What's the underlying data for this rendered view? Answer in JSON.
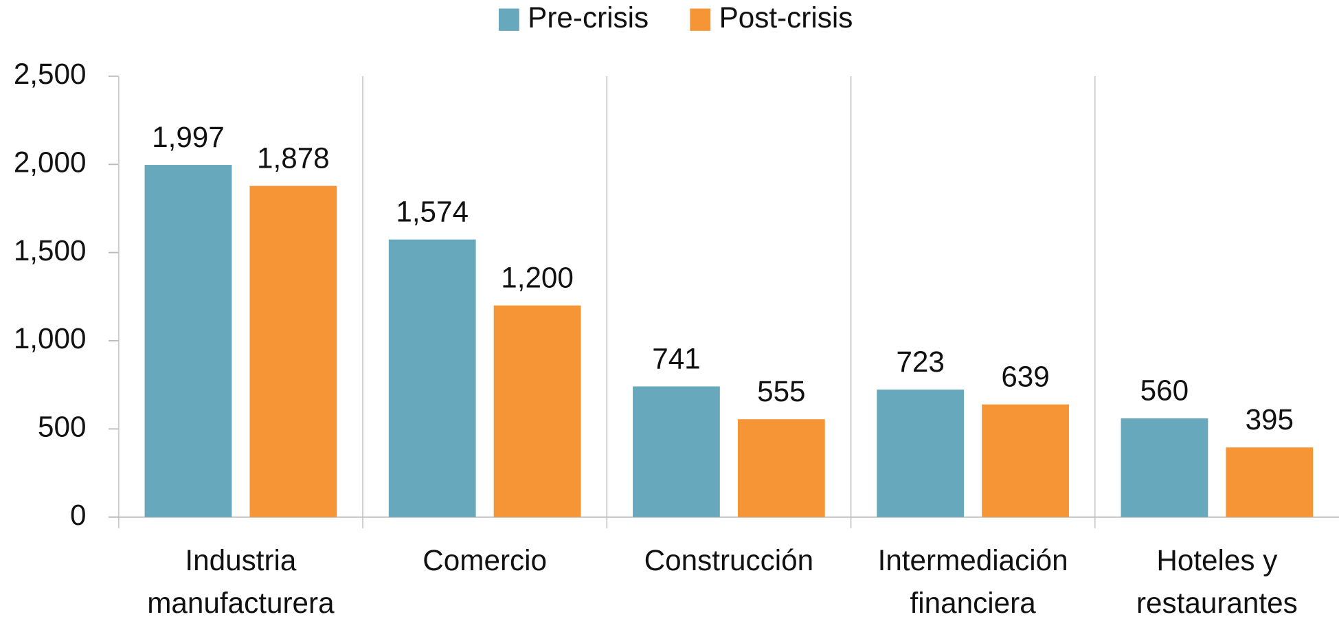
{
  "chart_data": {
    "type": "bar",
    "categories": [
      "Industria manufacturera",
      "Comercio",
      "Construcción",
      "Intermediación financiera",
      "Hoteles y restaurantes"
    ],
    "series": [
      {
        "name": "Pre-crisis",
        "color": "#67a8bd",
        "values": [
          1997,
          1574,
          741,
          723,
          560
        ],
        "value_labels": [
          "1,997",
          "1,574",
          "741",
          "723",
          "560"
        ]
      },
      {
        "name": "Post-crisis",
        "color": "#f59535",
        "values": [
          1878,
          1200,
          555,
          639,
          395
        ],
        "value_labels": [
          "1,878",
          "1,200",
          "555",
          "639",
          "395"
        ]
      }
    ],
    "ylim": [
      0,
      2500
    ],
    "yticks": [
      0,
      500,
      {
        "value": 1000,
        "label": "1,000"
      },
      {
        "value": 1500,
        "label": "1,500"
      },
      {
        "value": 2000,
        "label": "2,000"
      },
      {
        "value": 2500,
        "label": "2,500"
      }
    ],
    "legend": "top"
  }
}
